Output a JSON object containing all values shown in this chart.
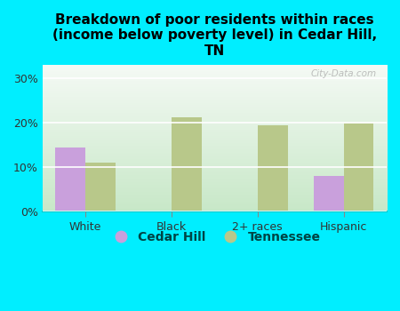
{
  "title": "Breakdown of poor residents within races\n(income below poverty level) in Cedar Hill,\nTN",
  "categories": [
    "White",
    "Black",
    "2+ races",
    "Hispanic"
  ],
  "cedar_hill": [
    14.5,
    0,
    0,
    8.0
  ],
  "tennessee": [
    11.0,
    21.2,
    19.5,
    19.8
  ],
  "cedar_hill_color": "#c9a0dc",
  "tennessee_color": "#b8c88a",
  "bg_outer": "#00eeff",
  "bg_plot_top": "#f5faf5",
  "bg_plot_bottom": "#c8e8c8",
  "yticks": [
    0,
    10,
    20,
    30
  ],
  "ylim": [
    0,
    33
  ],
  "bar_width": 0.35,
  "title_fontsize": 11,
  "legend_fontsize": 10,
  "tick_fontsize": 9,
  "watermark": "City-Data.com"
}
